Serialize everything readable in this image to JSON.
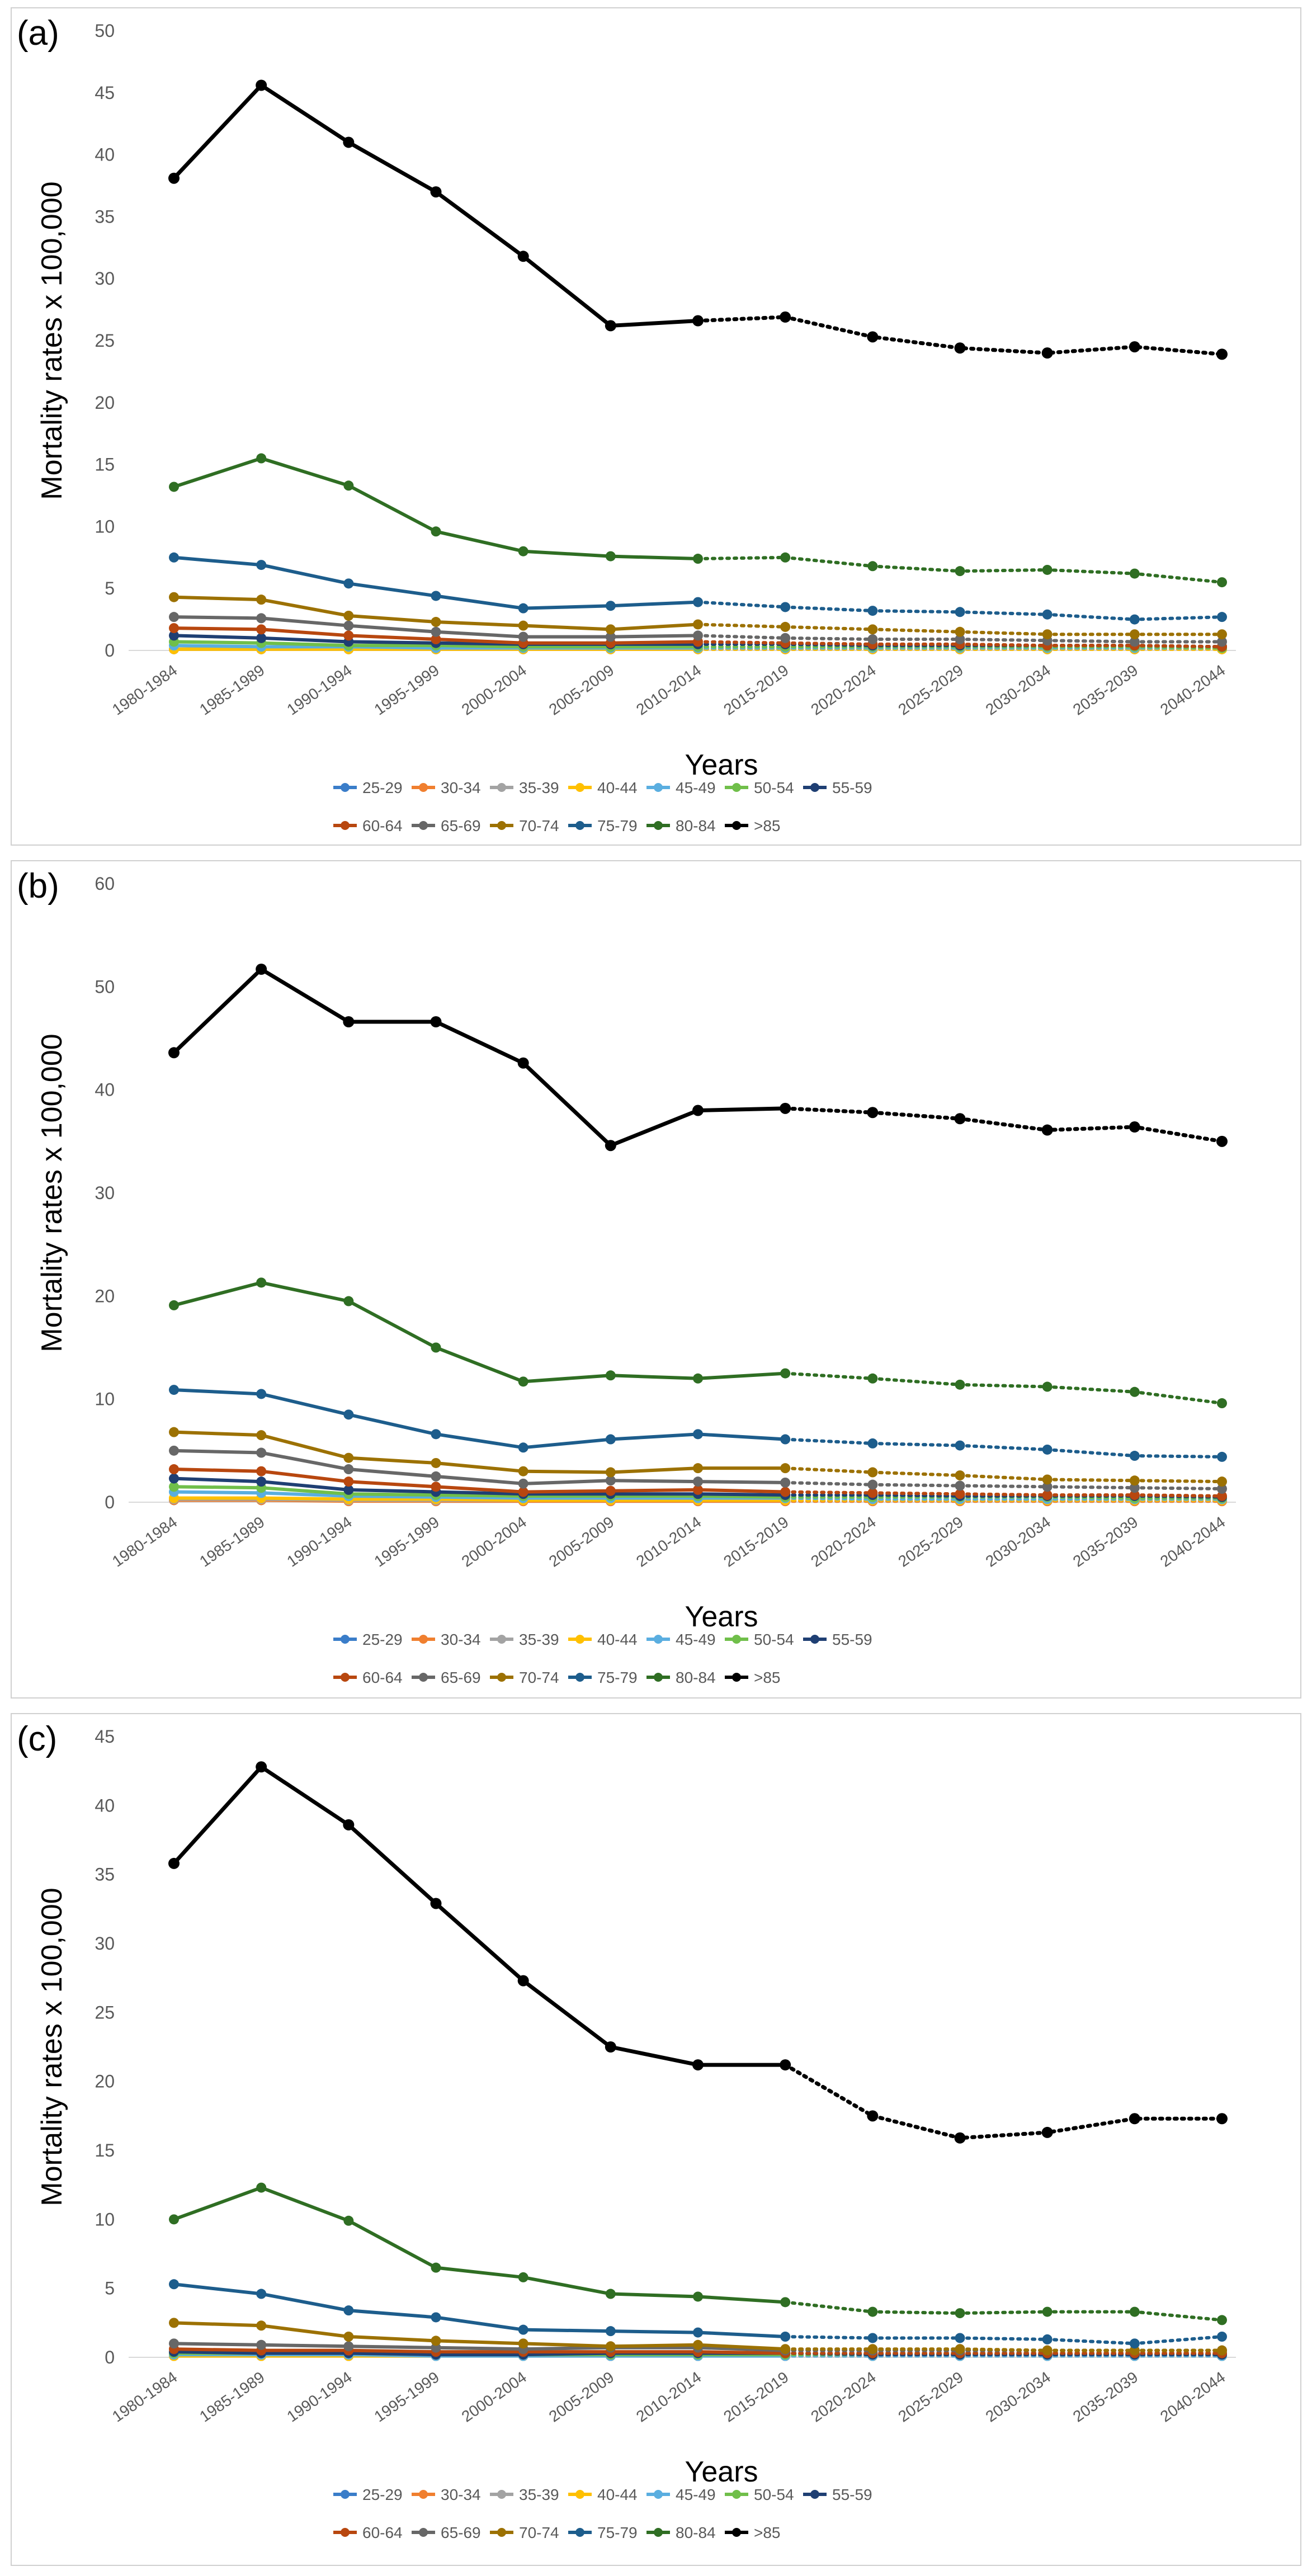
{
  "figure": {
    "x_categories": [
      "1980-1984",
      "1985-1989",
      "1990-1994",
      "1995-1999",
      "2000-2004",
      "2005-2009",
      "2010-2014",
      "2015-2019",
      "2020-2024",
      "2025-2029",
      "2030-2034",
      "2035-2039",
      "2040-2044"
    ],
    "legend_row1": [
      "25-29",
      "30-34",
      "35-39",
      "40-44",
      "45-49",
      "50-54",
      "55-59"
    ],
    "legend_row2": [
      "60-64",
      "65-69",
      "70-74",
      "75-79",
      "80-84",
      ">85"
    ],
    "series_colors": {
      "25-29": "#3a7dc9",
      "30-34": "#f07f2f",
      "35-39": "#a3a3a3",
      "40-44": "#ffc000",
      "45-49": "#5aaee0",
      "50-54": "#70bf4a",
      "55-59": "#1f3f73",
      "60-64": "#b8470f",
      "65-69": "#676767",
      "70-74": "#9c7102",
      "75-79": "#1d5d8c",
      "80-84": "#2f6e23",
      ">85": "#000000"
    }
  },
  "chart_data": [
    {
      "panel_label": "(a)",
      "type": "line",
      "xlabel": "Years",
      "ylabel": "Mortality rates x 100,000",
      "ylim": [
        0,
        50
      ],
      "yticks": [
        0,
        5,
        10,
        15,
        20,
        25,
        30,
        35,
        40,
        45,
        50
      ],
      "observed_through": "2010-2014",
      "series": [
        {
          "name": "25-29",
          "values": [
            0.1,
            0.1,
            0.1,
            0.1,
            0.1,
            0.1,
            0.1,
            0.1,
            0.1,
            0.1,
            0.1,
            0.1,
            0.1
          ]
        },
        {
          "name": "30-34",
          "values": [
            0.1,
            0.1,
            0.1,
            0.1,
            0.1,
            0.1,
            0.1,
            0.1,
            0.1,
            0.1,
            0.1,
            0.1,
            0.1
          ]
        },
        {
          "name": "35-39",
          "values": [
            0.1,
            0.1,
            0.1,
            0.1,
            0.1,
            0.1,
            0.1,
            0.1,
            0.1,
            0.1,
            0.1,
            0.1,
            0.1
          ]
        },
        {
          "name": "40-44",
          "values": [
            0.1,
            0.1,
            0.1,
            0.1,
            0.1,
            0.1,
            0.1,
            0.1,
            0.1,
            0.1,
            0.1,
            0.1,
            0.1
          ]
        },
        {
          "name": "45-49",
          "values": [
            0.4,
            0.3,
            0.3,
            0.2,
            0.2,
            0.2,
            0.2,
            0.2,
            0.2,
            0.2,
            0.2,
            0.2,
            0.2
          ]
        },
        {
          "name": "50-54",
          "values": [
            0.7,
            0.6,
            0.4,
            0.4,
            0.3,
            0.3,
            0.3,
            0.3,
            0.3,
            0.3,
            0.3,
            0.3,
            0.2
          ]
        },
        {
          "name": "55-59",
          "values": [
            1.2,
            1.0,
            0.7,
            0.6,
            0.5,
            0.5,
            0.5,
            0.5,
            0.4,
            0.4,
            0.4,
            0.4,
            0.3
          ]
        },
        {
          "name": "60-64",
          "values": [
            1.8,
            1.7,
            1.2,
            0.9,
            0.6,
            0.6,
            0.7,
            0.6,
            0.5,
            0.5,
            0.4,
            0.4,
            0.3
          ]
        },
        {
          "name": "65-69",
          "values": [
            2.7,
            2.6,
            2.0,
            1.5,
            1.1,
            1.1,
            1.2,
            1.0,
            0.9,
            0.9,
            0.8,
            0.7,
            0.7
          ]
        },
        {
          "name": "70-74",
          "values": [
            4.3,
            4.1,
            2.8,
            2.3,
            2.0,
            1.7,
            2.1,
            1.9,
            1.7,
            1.5,
            1.3,
            1.3,
            1.3
          ]
        },
        {
          "name": "75-79",
          "values": [
            7.5,
            6.9,
            5.4,
            4.4,
            3.4,
            3.6,
            3.9,
            3.5,
            3.2,
            3.1,
            2.9,
            2.5,
            2.7
          ]
        },
        {
          "name": "80-84",
          "values": [
            13.2,
            15.5,
            13.3,
            9.6,
            8.0,
            7.6,
            7.4,
            7.5,
            6.8,
            6.4,
            6.5,
            6.2,
            5.5
          ]
        },
        {
          "name": ">85",
          "values": [
            38.1,
            45.6,
            41.0,
            37.0,
            31.8,
            26.2,
            26.6,
            26.9,
            25.3,
            24.4,
            24.0,
            24.5,
            23.9
          ]
        }
      ]
    },
    {
      "panel_label": "(b)",
      "type": "line",
      "xlabel": "Years",
      "ylabel": "Mortality rates x 100,000",
      "ylim": [
        0,
        60
      ],
      "yticks": [
        0,
        10,
        20,
        30,
        40,
        50,
        60
      ],
      "observed_through": "2015-2019",
      "series": [
        {
          "name": "25-29",
          "values": [
            0.2,
            0.2,
            0.2,
            0.1,
            0.1,
            0.1,
            0.1,
            0.1,
            0.1,
            0.1,
            0.1,
            0.1,
            0.1
          ]
        },
        {
          "name": "30-34",
          "values": [
            0.2,
            0.2,
            0.1,
            0.1,
            0.1,
            0.1,
            0.1,
            0.1,
            0.1,
            0.1,
            0.1,
            0.1,
            0.1
          ]
        },
        {
          "name": "35-39",
          "values": [
            0.3,
            0.3,
            0.2,
            0.2,
            0.2,
            0.2,
            0.2,
            0.2,
            0.2,
            0.2,
            0.2,
            0.2,
            0.2
          ]
        },
        {
          "name": "40-44",
          "values": [
            0.4,
            0.4,
            0.3,
            0.3,
            0.2,
            0.2,
            0.2,
            0.2,
            0.2,
            0.2,
            0.2,
            0.2,
            0.2
          ]
        },
        {
          "name": "45-49",
          "values": [
            1.0,
            0.9,
            0.6,
            0.5,
            0.4,
            0.4,
            0.4,
            0.4,
            0.3,
            0.3,
            0.3,
            0.3,
            0.3
          ]
        },
        {
          "name": "50-54",
          "values": [
            1.5,
            1.4,
            0.8,
            0.7,
            0.6,
            0.6,
            0.6,
            0.5,
            0.5,
            0.5,
            0.5,
            0.4,
            0.4
          ]
        },
        {
          "name": "55-59",
          "values": [
            2.3,
            2.0,
            1.2,
            1.0,
            0.8,
            0.8,
            0.8,
            0.7,
            0.7,
            0.6,
            0.6,
            0.6,
            0.5
          ]
        },
        {
          "name": "60-64",
          "values": [
            3.2,
            3.0,
            2.0,
            1.5,
            1.0,
            1.1,
            1.2,
            1.0,
            0.9,
            0.8,
            0.7,
            0.7,
            0.6
          ]
        },
        {
          "name": "65-69",
          "values": [
            5.0,
            4.8,
            3.2,
            2.5,
            1.8,
            2.1,
            2.0,
            1.9,
            1.7,
            1.6,
            1.5,
            1.4,
            1.3
          ]
        },
        {
          "name": "70-74",
          "values": [
            6.8,
            6.5,
            4.3,
            3.8,
            3.0,
            2.9,
            3.3,
            3.3,
            2.9,
            2.6,
            2.2,
            2.1,
            2.0
          ]
        },
        {
          "name": "75-79",
          "values": [
            10.9,
            10.5,
            8.5,
            6.6,
            5.3,
            6.1,
            6.6,
            6.1,
            5.7,
            5.5,
            5.1,
            4.5,
            4.4
          ]
        },
        {
          "name": "80-84",
          "values": [
            19.1,
            21.3,
            19.5,
            15.0,
            11.7,
            12.3,
            12.0,
            12.5,
            12.0,
            11.4,
            11.2,
            10.7,
            9.6
          ]
        },
        {
          "name": ">85",
          "values": [
            43.6,
            51.7,
            46.6,
            46.6,
            42.6,
            34.6,
            38.0,
            38.2,
            37.8,
            37.2,
            36.1,
            36.4,
            35.0
          ]
        }
      ]
    },
    {
      "panel_label": "(c)",
      "type": "line",
      "xlabel": "Years",
      "ylabel": "Mortality rates x 100,000",
      "ylim": [
        0,
        45
      ],
      "yticks": [
        0,
        5,
        10,
        15,
        20,
        25,
        30,
        35,
        40,
        45
      ],
      "observed_through": "2015-2019",
      "series": [
        {
          "name": "25-29",
          "values": [
            0.1,
            0.1,
            0.1,
            0.1,
            0.1,
            0.1,
            0.1,
            0.1,
            0.1,
            0.1,
            0.1,
            0.1,
            0.1
          ]
        },
        {
          "name": "30-34",
          "values": [
            0.1,
            0.1,
            0.1,
            0.1,
            0.1,
            0.1,
            0.1,
            0.1,
            0.1,
            0.1,
            0.1,
            0.1,
            0.1
          ]
        },
        {
          "name": "35-39",
          "values": [
            0.1,
            0.1,
            0.1,
            0.1,
            0.1,
            0.1,
            0.1,
            0.1,
            0.1,
            0.1,
            0.1,
            0.1,
            0.1
          ]
        },
        {
          "name": "40-44",
          "values": [
            0.1,
            0.1,
            0.1,
            0.1,
            0.1,
            0.1,
            0.1,
            0.1,
            0.1,
            0.1,
            0.1,
            0.1,
            0.1
          ]
        },
        {
          "name": "45-49",
          "values": [
            0.2,
            0.2,
            0.2,
            0.1,
            0.1,
            0.1,
            0.1,
            0.1,
            0.1,
            0.1,
            0.1,
            0.1,
            0.1
          ]
        },
        {
          "name": "50-54",
          "values": [
            0.3,
            0.3,
            0.3,
            0.2,
            0.2,
            0.2,
            0.2,
            0.2,
            0.2,
            0.2,
            0.2,
            0.2,
            0.2
          ]
        },
        {
          "name": "55-59",
          "values": [
            0.4,
            0.3,
            0.3,
            0.2,
            0.2,
            0.3,
            0.3,
            0.3,
            0.2,
            0.2,
            0.2,
            0.2,
            0.2
          ]
        },
        {
          "name": "60-64",
          "values": [
            0.6,
            0.5,
            0.5,
            0.4,
            0.4,
            0.4,
            0.4,
            0.3,
            0.3,
            0.3,
            0.3,
            0.3,
            0.3
          ]
        },
        {
          "name": "65-69",
          "values": [
            1.0,
            0.9,
            0.8,
            0.7,
            0.6,
            0.7,
            0.7,
            0.5,
            0.5,
            0.5,
            0.5,
            0.5,
            0.5
          ]
        },
        {
          "name": "70-74",
          "values": [
            2.5,
            2.3,
            1.5,
            1.2,
            1.0,
            0.8,
            0.9,
            0.6,
            0.6,
            0.6,
            0.5,
            0.5,
            0.5
          ]
        },
        {
          "name": "75-79",
          "values": [
            5.3,
            4.6,
            3.4,
            2.9,
            2.0,
            1.9,
            1.8,
            1.5,
            1.4,
            1.4,
            1.3,
            1.0,
            1.5
          ]
        },
        {
          "name": "80-84",
          "values": [
            10.0,
            12.3,
            9.9,
            6.5,
            5.8,
            4.6,
            4.4,
            4.0,
            3.3,
            3.2,
            3.3,
            3.3,
            2.7
          ]
        },
        {
          "name": ">85",
          "values": [
            35.8,
            42.8,
            38.6,
            32.9,
            27.3,
            22.5,
            21.2,
            21.2,
            17.5,
            15.9,
            16.3,
            17.3,
            17.3
          ]
        }
      ]
    }
  ]
}
